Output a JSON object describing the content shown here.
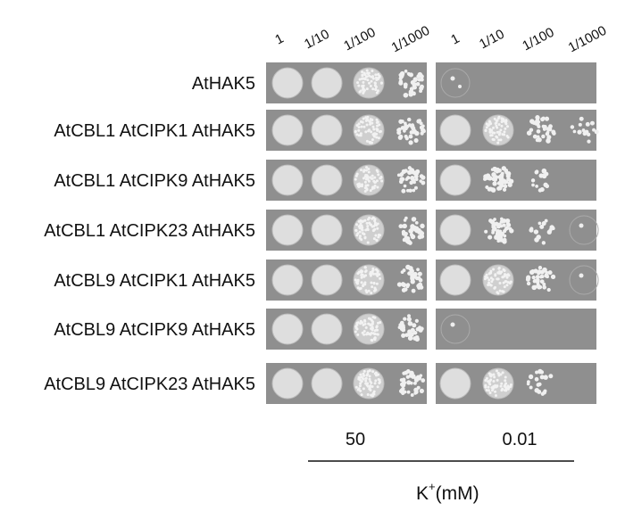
{
  "dilutions": {
    "left": [
      "1",
      "1/10",
      "1/100",
      "1/1000"
    ],
    "right": [
      "1",
      "1/10",
      "1/100",
      "1/1000"
    ]
  },
  "strains": [
    "AtHAK5",
    "AtCBL1 AtCIPK1 AtHAK5",
    "AtCBL1 AtCIPK9 AtHAK5",
    "AtCBL1 AtCIPK23 AtHAK5",
    "AtCBL9 AtCIPK1 AtHAK5",
    "AtCBL9 AtCIPK9 AtHAK5",
    "AtCBL9 AtCIPK23 AtHAK5"
  ],
  "conditions": [
    "50",
    "0.01"
  ],
  "axis_label": {
    "base": "K",
    "superscript": "+",
    "unit": "(mM)"
  }
}
